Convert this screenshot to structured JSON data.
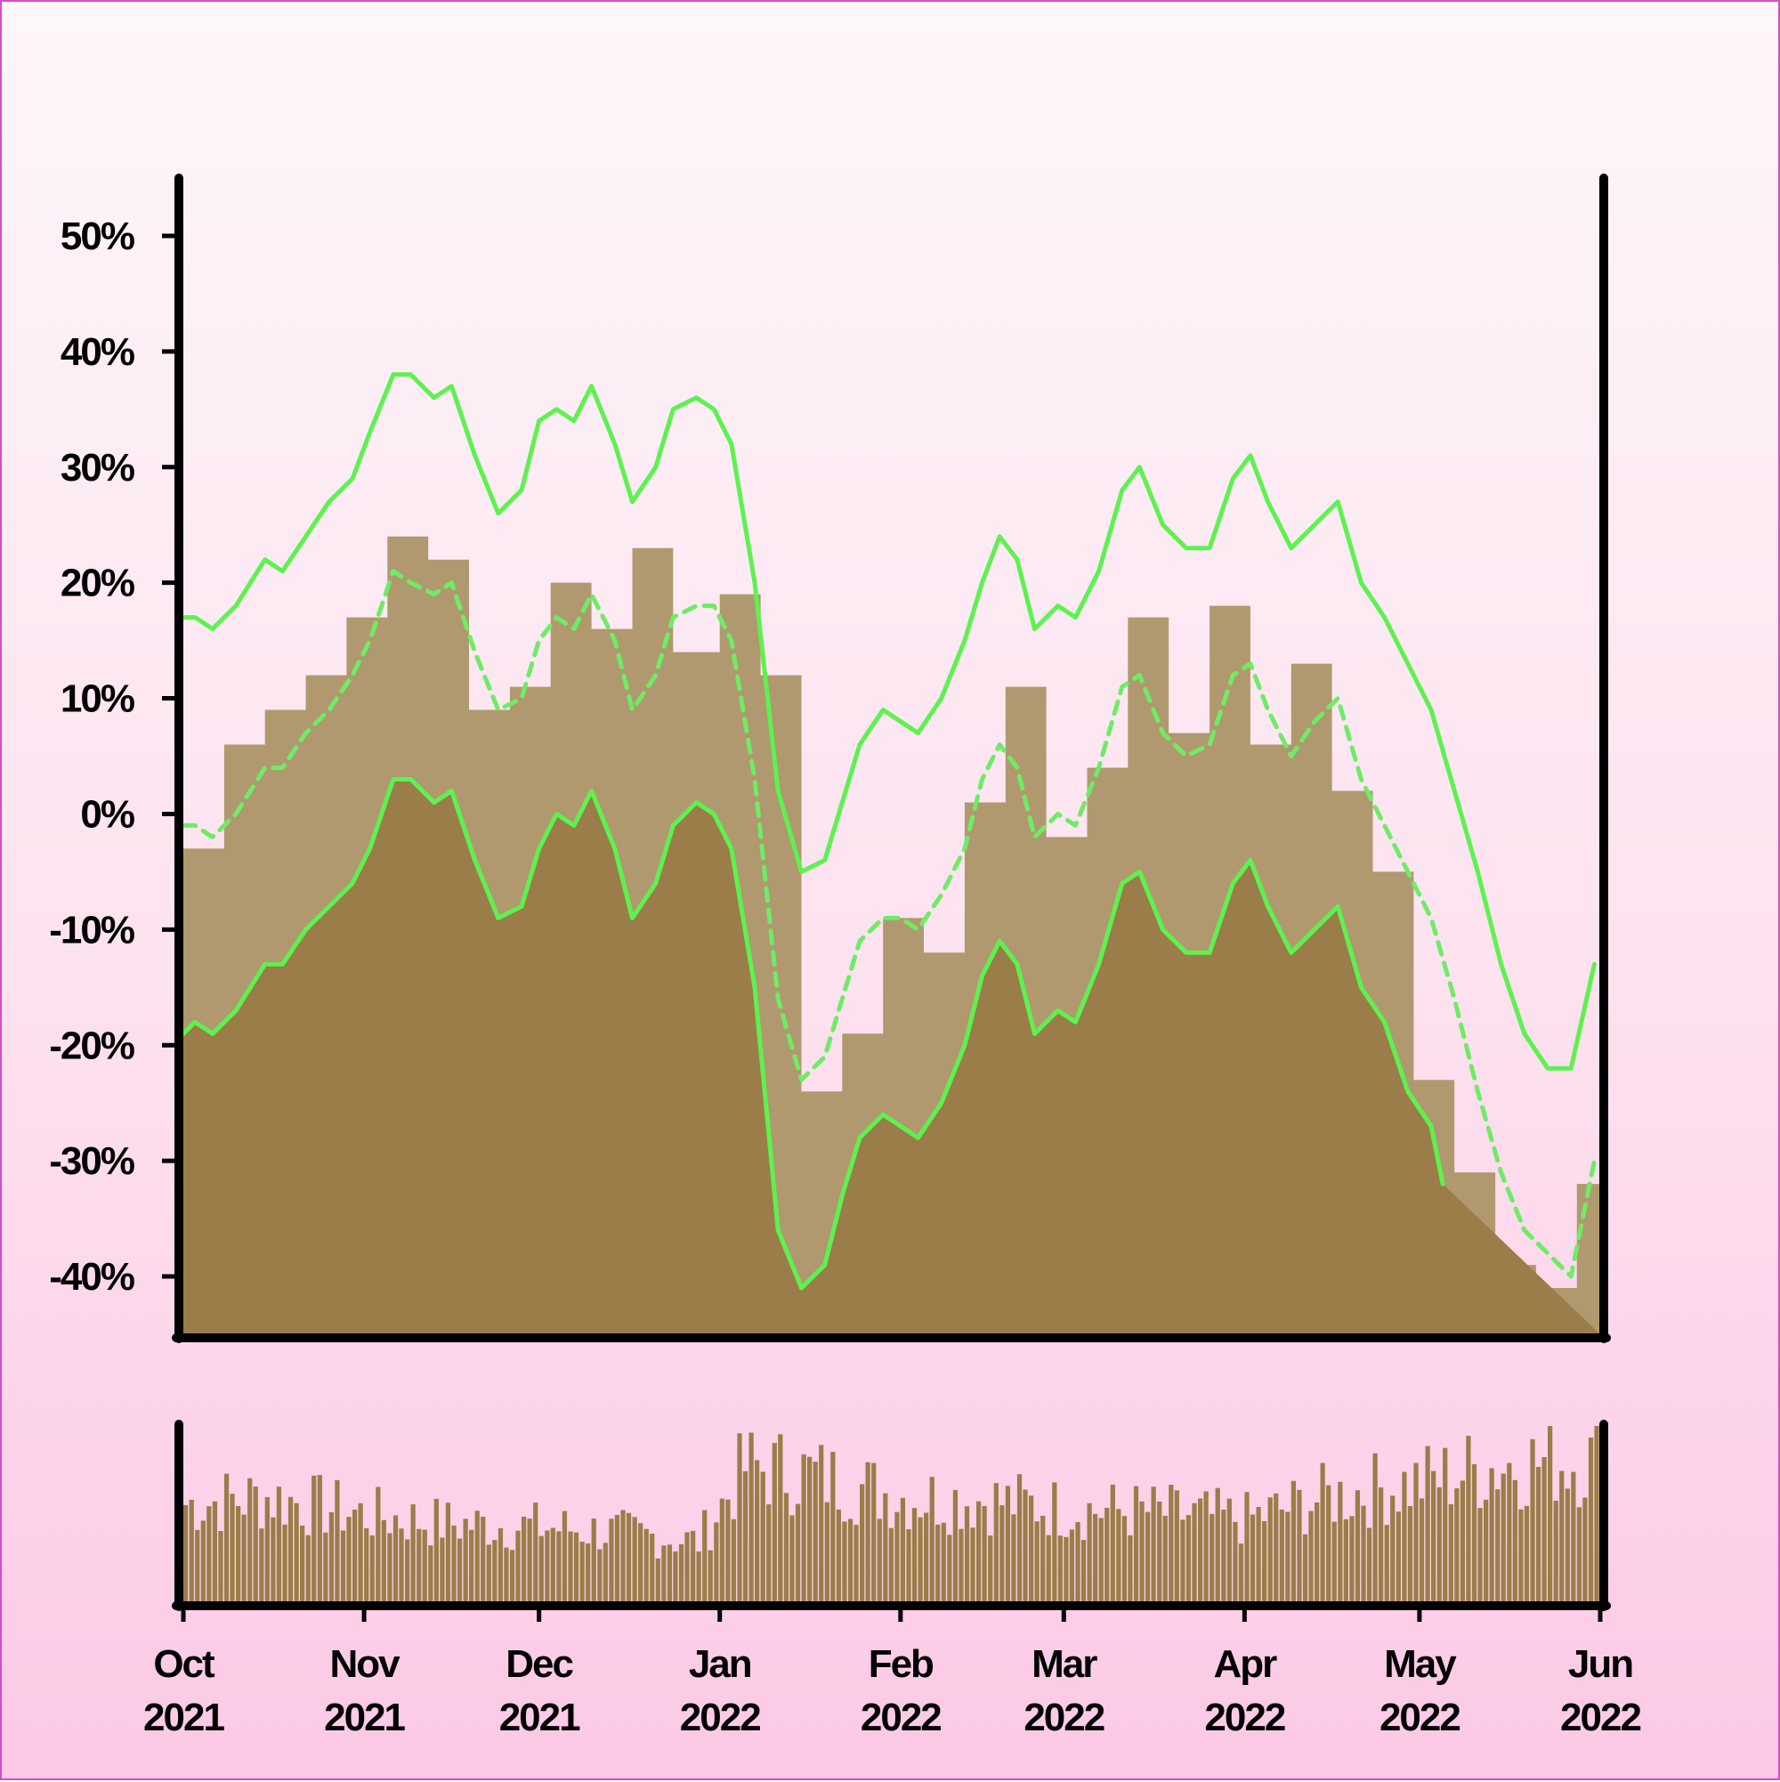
{
  "chart_data": [
    {
      "type": "line",
      "panel": "price",
      "y_ticks": [
        50,
        40,
        30,
        20,
        10,
        0,
        -10,
        -20,
        -30,
        -40
      ],
      "y_tick_labels": [
        "50%",
        "40%",
        "30%",
        "20%",
        "10%",
        "0%",
        "-10%",
        "-20%",
        "-30%",
        "-40%"
      ],
      "ylim": [
        -45,
        55
      ],
      "area_series": {
        "x": [
          "2021-10-01",
          "2021-10-08",
          "2021-10-15",
          "2021-10-22",
          "2021-10-29",
          "2021-11-05",
          "2021-11-12",
          "2021-11-19",
          "2021-11-26",
          "2021-12-03",
          "2021-12-10",
          "2021-12-17",
          "2021-12-24",
          "2022-01-01",
          "2022-01-08",
          "2022-01-15",
          "2022-01-22",
          "2022-01-29",
          "2022-02-05",
          "2022-02-12",
          "2022-02-19",
          "2022-02-26",
          "2022-03-05",
          "2022-03-12",
          "2022-03-19",
          "2022-03-26",
          "2022-04-02",
          "2022-04-09",
          "2022-04-16",
          "2022-04-23",
          "2022-04-30",
          "2022-05-07",
          "2022-05-14",
          "2022-05-21",
          "2022-05-28",
          "2022-06-01"
        ],
        "values": [
          -3,
          6,
          9,
          12,
          17,
          24,
          22,
          9,
          11,
          20,
          16,
          23,
          14,
          19,
          12,
          -24,
          -19,
          -9,
          -12,
          1,
          11,
          -2,
          4,
          17,
          7,
          18,
          6,
          13,
          2,
          -5,
          -23,
          -31,
          -39,
          -41,
          -32,
          -30
        ]
      },
      "lines": [
        {
          "style": "solid",
          "color": "#5df24f",
          "x": [
            "2021-10-01",
            "2021-10-03",
            "2021-10-06",
            "2021-10-10",
            "2021-10-15",
            "2021-10-18",
            "2021-10-22",
            "2021-10-26",
            "2021-10-30",
            "2021-11-02",
            "2021-11-06",
            "2021-11-09",
            "2021-11-13",
            "2021-11-16",
            "2021-11-20",
            "2021-11-24",
            "2021-11-28",
            "2021-12-01",
            "2021-12-04",
            "2021-12-07",
            "2021-12-10",
            "2021-12-14",
            "2021-12-17",
            "2021-12-21",
            "2021-12-24",
            "2021-12-28",
            "2021-12-31",
            "2022-01-03",
            "2022-01-07",
            "2022-01-11",
            "2022-01-15",
            "2022-01-19",
            "2022-01-22",
            "2022-01-25",
            "2022-01-29",
            "2022-02-01",
            "2022-02-04",
            "2022-02-08",
            "2022-02-12",
            "2022-02-15",
            "2022-02-18",
            "2022-02-21",
            "2022-02-24",
            "2022-02-28",
            "2022-03-03",
            "2022-03-07",
            "2022-03-11",
            "2022-03-14",
            "2022-03-18",
            "2022-03-22",
            "2022-03-26",
            "2022-03-30",
            "2022-04-02",
            "2022-04-05",
            "2022-04-09",
            "2022-04-13",
            "2022-04-17",
            "2022-04-21",
            "2022-04-25",
            "2022-04-29",
            "2022-05-03",
            "2022-05-07",
            "2022-05-11",
            "2022-05-15",
            "2022-05-19",
            "2022-05-23",
            "2022-05-27",
            "2022-05-31"
          ],
          "values": [
            17,
            17,
            16,
            18,
            22,
            21,
            24,
            27,
            29,
            33,
            38,
            38,
            36,
            37,
            31,
            26,
            28,
            34,
            35,
            34,
            37,
            32,
            27,
            30,
            35,
            36,
            35,
            32,
            20,
            2,
            -5,
            -4,
            1,
            6,
            9,
            8,
            7,
            10,
            15,
            20,
            24,
            22,
            16,
            18,
            17,
            21,
            28,
            30,
            25,
            23,
            23,
            29,
            31,
            27,
            23,
            25,
            27,
            20,
            17,
            13,
            9,
            2,
            -5,
            -13,
            -19,
            -22,
            -22,
            -13
          ]
        },
        {
          "style": "dashed",
          "color": "#6eec66",
          "x": [
            "2021-10-01",
            "2021-10-03",
            "2021-10-06",
            "2021-10-10",
            "2021-10-15",
            "2021-10-18",
            "2021-10-22",
            "2021-10-26",
            "2021-10-30",
            "2021-11-02",
            "2021-11-06",
            "2021-11-09",
            "2021-11-13",
            "2021-11-16",
            "2021-11-20",
            "2021-11-24",
            "2021-11-28",
            "2021-12-01",
            "2021-12-04",
            "2021-12-07",
            "2021-12-10",
            "2021-12-14",
            "2021-12-17",
            "2021-12-21",
            "2021-12-24",
            "2021-12-28",
            "2021-12-31",
            "2022-01-03",
            "2022-01-07",
            "2022-01-11",
            "2022-01-15",
            "2022-01-19",
            "2022-01-22",
            "2022-01-25",
            "2022-01-29",
            "2022-02-01",
            "2022-02-04",
            "2022-02-08",
            "2022-02-12",
            "2022-02-15",
            "2022-02-18",
            "2022-02-21",
            "2022-02-24",
            "2022-02-28",
            "2022-03-03",
            "2022-03-07",
            "2022-03-11",
            "2022-03-14",
            "2022-03-18",
            "2022-03-22",
            "2022-03-26",
            "2022-03-30",
            "2022-04-02",
            "2022-04-05",
            "2022-04-09",
            "2022-04-13",
            "2022-04-17",
            "2022-04-21",
            "2022-04-25",
            "2022-04-29",
            "2022-05-03",
            "2022-05-07",
            "2022-05-11",
            "2022-05-15",
            "2022-05-19",
            "2022-05-23",
            "2022-05-27",
            "2022-05-31"
          ],
          "values": [
            -1,
            -1,
            -2,
            0,
            4,
            4,
            7,
            9,
            12,
            15,
            21,
            20,
            19,
            20,
            14,
            9,
            10,
            15,
            17,
            16,
            19,
            15,
            9,
            12,
            17,
            18,
            18,
            15,
            3,
            -16,
            -23,
            -21,
            -16,
            -11,
            -9,
            -9,
            -10,
            -7,
            -3,
            3,
            6,
            4,
            -2,
            0,
            -1,
            4,
            11,
            12,
            7,
            5,
            6,
            12,
            13,
            9,
            5,
            8,
            10,
            3,
            -1,
            -5,
            -9,
            -16,
            -24,
            -31,
            -36,
            -38,
            -40,
            -30
          ]
        },
        {
          "style": "solid",
          "color": "#5df24f",
          "x": [
            "2021-10-01",
            "2021-10-03",
            "2021-10-06",
            "2021-10-10",
            "2021-10-15",
            "2021-10-18",
            "2021-10-22",
            "2021-10-26",
            "2021-10-30",
            "2021-11-02",
            "2021-11-06",
            "2021-11-09",
            "2021-11-13",
            "2021-11-16",
            "2021-11-20",
            "2021-11-24",
            "2021-11-28",
            "2021-12-01",
            "2021-12-04",
            "2021-12-07",
            "2021-12-10",
            "2021-12-14",
            "2021-12-17",
            "2021-12-21",
            "2021-12-24",
            "2021-12-28",
            "2021-12-31",
            "2022-01-03",
            "2022-01-07",
            "2022-01-11",
            "2022-01-15",
            "2022-01-19",
            "2022-01-22",
            "2022-01-25",
            "2022-01-29",
            "2022-02-01",
            "2022-02-04",
            "2022-02-08",
            "2022-02-12",
            "2022-02-15",
            "2022-02-18",
            "2022-02-21",
            "2022-02-24",
            "2022-02-28",
            "2022-03-03",
            "2022-03-07",
            "2022-03-11",
            "2022-03-14",
            "2022-03-18",
            "2022-03-22",
            "2022-03-26",
            "2022-03-30",
            "2022-04-02",
            "2022-04-05",
            "2022-04-09",
            "2022-04-13",
            "2022-04-17",
            "2022-04-21",
            "2022-04-25",
            "2022-04-29",
            "2022-05-03",
            "2022-05-05"
          ],
          "values": [
            -19,
            -18,
            -19,
            -17,
            -13,
            -13,
            -10,
            -8,
            -6,
            -3,
            3,
            3,
            1,
            2,
            -4,
            -9,
            -8,
            -3,
            0,
            -1,
            2,
            -3,
            -9,
            -6,
            -1,
            1,
            0,
            -3,
            -15,
            -36,
            -41,
            -39,
            -33,
            -28,
            -26,
            -27,
            -28,
            -25,
            -20,
            -14,
            -11,
            -13,
            -19,
            -17,
            -18,
            -13,
            -6,
            -5,
            -10,
            -12,
            -12,
            -6,
            -4,
            -8,
            -12,
            -10,
            -8,
            -15,
            -18,
            -24,
            -27,
            -32
          ]
        }
      ]
    },
    {
      "type": "bar",
      "panel": "volume",
      "x_tick_labels": [
        [
          "Oct",
          "2021"
        ],
        [
          "Nov",
          "2021"
        ],
        [
          "Dec",
          "2021"
        ],
        [
          "Jan",
          "2022"
        ],
        [
          "Feb",
          "2022"
        ],
        [
          "Mar",
          "2022"
        ],
        [
          "Apr",
          "2022"
        ],
        [
          "May",
          "2022"
        ],
        [
          "Jun",
          "2022"
        ]
      ],
      "x_tick_dates": [
        "2021-10-01",
        "2021-11-01",
        "2021-12-01",
        "2022-01-01",
        "2022-02-01",
        "2022-03-01",
        "2022-04-01",
        "2022-05-01",
        "2022-06-01"
      ],
      "x": [
        "2021-10-01",
        "2021-10-15",
        "2021-11-01",
        "2021-11-15",
        "2021-12-01",
        "2021-12-15",
        "2021-12-28",
        "2022-01-05",
        "2022-01-15",
        "2022-02-01",
        "2022-02-15",
        "2022-03-01",
        "2022-03-15",
        "2022-04-01",
        "2022-04-15",
        "2022-05-01",
        "2022-05-15",
        "2022-06-01"
      ],
      "values": [
        65,
        70,
        58,
        52,
        50,
        46,
        40,
        90,
        86,
        70,
        68,
        62,
        60,
        55,
        70,
        80,
        92,
        95
      ]
    }
  ]
}
